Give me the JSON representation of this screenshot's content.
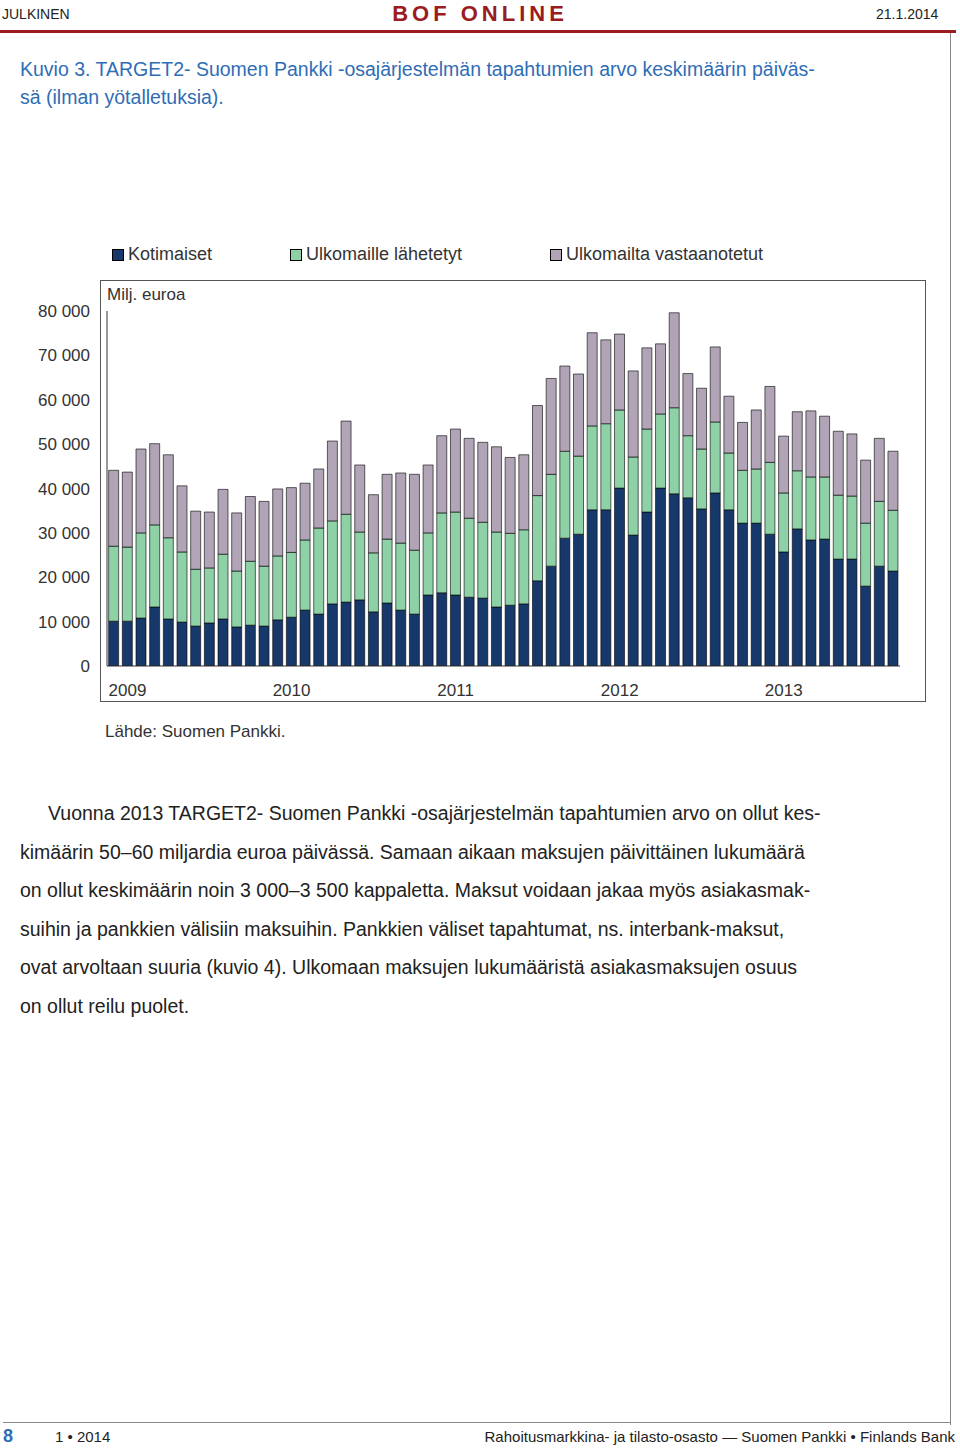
{
  "header": {
    "label": "JULKINEN",
    "title": "BOF ONLINE",
    "date": "21.1.2014"
  },
  "caption": [
    "Kuvio 3. TARGET2- Suomen Pankki -osajärjestelmän tapahtumien arvo keskimäärin päiväs-",
    "sä (ilman yötalletuksia)."
  ],
  "chart_data": {
    "type": "bar",
    "stacked": true,
    "grid": false,
    "legend": "top",
    "y_label": "Milj. euroa",
    "source": "Lähde: Suomen Pankki.",
    "categories": [
      null,
      "2009",
      null,
      null,
      null,
      null,
      null,
      null,
      null,
      null,
      null,
      null,
      null,
      "2010",
      null,
      null,
      null,
      null,
      null,
      null,
      null,
      null,
      null,
      null,
      null,
      "2011",
      null,
      null,
      null,
      null,
      null,
      null,
      null,
      null,
      null,
      null,
      null,
      "2012",
      null,
      null,
      null,
      null,
      null,
      null,
      null,
      null,
      null,
      null,
      null,
      "2013",
      null,
      null,
      null,
      null,
      null,
      null,
      null,
      null
    ],
    "ylim": [
      0,
      80000
    ],
    "yticks": [
      0,
      {
        "value": 10000,
        "label": "10 000"
      },
      {
        "value": 20000,
        "label": "20 000"
      },
      {
        "value": 30000,
        "label": "30 000"
      },
      {
        "value": 40000,
        "label": "40 000"
      },
      {
        "value": 50000,
        "label": "50 000"
      },
      {
        "value": 60000,
        "label": "60 000"
      },
      {
        "value": 70000,
        "label": "70 000"
      },
      {
        "value": 80000,
        "label": "80 000"
      }
    ],
    "series": [
      {
        "name": "Kotimaiset",
        "color": "#17386b",
        "values": [
          10100,
          10100,
          10800,
          13300,
          10600,
          9900,
          9000,
          9700,
          10600,
          8800,
          9200,
          9000,
          10400,
          11000,
          12600,
          11700,
          14000,
          14400,
          14900,
          12200,
          14200,
          12600,
          11700,
          16000,
          16500,
          16000,
          15500,
          15300,
          13300,
          13700,
          14000,
          19200,
          22500,
          28800,
          29700,
          35200,
          35200,
          40100,
          29500,
          34700,
          40100,
          38800,
          37900,
          35400,
          39000,
          35200,
          32200,
          32200,
          29700,
          25700,
          30900,
          28400,
          28600,
          24100,
          24100,
          18000,
          22500,
          21400
        ]
      },
      {
        "name": "Ulkomaille lähetetyt",
        "color": "#8ed1a6",
        "values": [
          16900,
          16700,
          19200,
          18500,
          18300,
          15800,
          12800,
          12400,
          14600,
          12600,
          14400,
          13500,
          14400,
          14600,
          15800,
          19400,
          18700,
          19800,
          15300,
          13300,
          14400,
          15100,
          14400,
          14000,
          18000,
          18700,
          17800,
          17100,
          16900,
          16200,
          16700,
          19200,
          20700,
          19600,
          17600,
          18900,
          19400,
          17600,
          17600,
          18700,
          16700,
          19400,
          14000,
          13500,
          16000,
          12800,
          11900,
          12200,
          16200,
          13300,
          13100,
          14200,
          14000,
          14400,
          14200,
          14200,
          14600,
          13700
        ]
      },
      {
        "name": "Ulkomailta vastaanotetut",
        "color": "#b0a4b6",
        "values": [
          17100,
          16900,
          18900,
          18300,
          18700,
          14900,
          13100,
          12600,
          14600,
          13100,
          14600,
          14600,
          15100,
          14600,
          12800,
          13300,
          18000,
          21000,
          15100,
          13100,
          14600,
          15800,
          17100,
          15300,
          17400,
          18700,
          18000,
          18000,
          19200,
          17100,
          16900,
          20300,
          21600,
          19200,
          18500,
          21000,
          18900,
          17100,
          19400,
          18300,
          15800,
          21400,
          14000,
          13700,
          16900,
          12800,
          10800,
          13300,
          17100,
          12800,
          13300,
          14900,
          13700,
          14400,
          14000,
          14200,
          14200,
          13300
        ]
      }
    ]
  },
  "body": [
    "Vuonna 2013 TARGET2- Suomen Pankki -osajärjestelmän tapahtumien arvo on ollut kes-",
    "kimäärin 50–60 miljardia euroa päivässä. Samaan aikaan maksujen päivittäinen lukumäärä",
    "on ollut keskimäärin noin 3 000–3 500 kappaletta. Maksut voidaan jakaa myös asiakasmak-",
    "suihin ja pankkien välisiin maksuihin. Pankkien väliset tapahtumat, ns. interbank-maksut,",
    "ovat arvoltaan suuria (kuvio 4). Ulkomaan maksujen lukumääristä asiakasmaksujen osuus",
    "on ollut reilu puolet."
  ],
  "footer": {
    "page": "8",
    "issue": "1 • 2014",
    "publisher": "Rahoitusmarkkina- ja tilasto-osasto — Suomen Pankki • Finlands Bank"
  }
}
